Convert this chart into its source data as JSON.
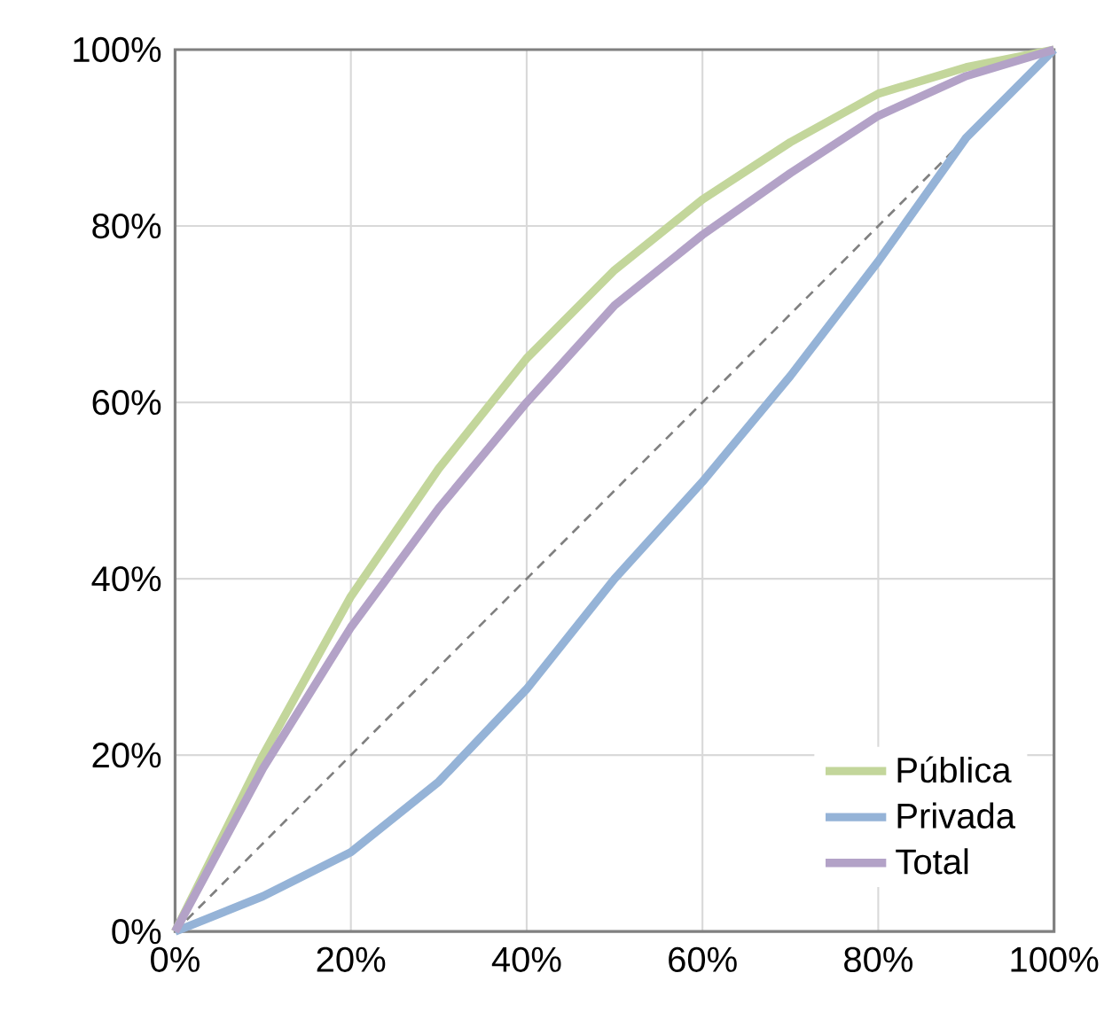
{
  "chart_data": {
    "type": "line",
    "x": [
      0,
      10,
      20,
      30,
      40,
      50,
      60,
      70,
      80,
      90,
      100
    ],
    "series": [
      {
        "name": "Pública",
        "color": "#c3d69b",
        "values": [
          0,
          20,
          38,
          52.5,
          65,
          75,
          83,
          89.5,
          95,
          98,
          100
        ]
      },
      {
        "name": "Privada",
        "color": "#95b3d7",
        "values": [
          0,
          4,
          9,
          17,
          27.5,
          40,
          51,
          63,
          76,
          90,
          100
        ]
      },
      {
        "name": "Total",
        "color": "#b3a2c7",
        "values": [
          0,
          18.5,
          34.5,
          48,
          60,
          71,
          79,
          86,
          92.5,
          97,
          100
        ]
      },
      {
        "color": "#808080",
        "line_style": "dashed",
        "x": [
          0,
          100
        ],
        "values": [
          0,
          100
        ]
      }
    ],
    "xlim": [
      0,
      100
    ],
    "ylim": [
      0,
      100
    ],
    "xticks": [
      {
        "value": 0,
        "label": "0%"
      },
      {
        "value": 20,
        "label": "20%"
      },
      {
        "value": 40,
        "label": "40%"
      },
      {
        "value": 60,
        "label": "60%"
      },
      {
        "value": 80,
        "label": "80%"
      },
      {
        "value": 100,
        "label": "100%"
      }
    ],
    "yticks": [
      {
        "value": 0,
        "label": "0%"
      },
      {
        "value": 20,
        "label": "20%"
      },
      {
        "value": 40,
        "label": "40%"
      },
      {
        "value": 60,
        "label": "60%"
      },
      {
        "value": 80,
        "label": "80%"
      },
      {
        "value": 100,
        "label": "100%"
      }
    ],
    "grid": true,
    "legend": "bottom right",
    "line_style": "solid",
    "marker": "none"
  }
}
